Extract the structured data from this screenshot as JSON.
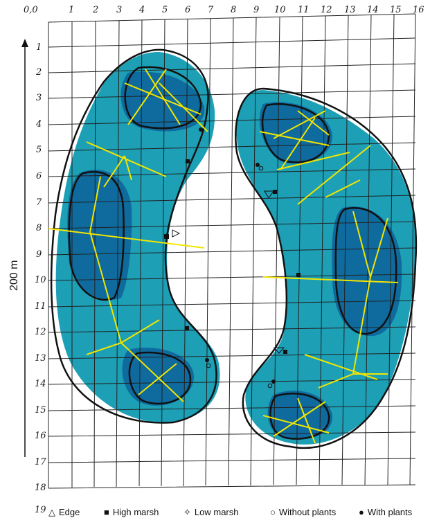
{
  "axes": {
    "x_ticks": [
      "0,0",
      "1",
      "2",
      "3",
      "4",
      "5",
      "6",
      "7",
      "8",
      "9",
      "10",
      "11",
      "12",
      "13",
      "14",
      "15",
      "16"
    ],
    "y_ticks": [
      "1",
      "2",
      "3",
      "4",
      "5",
      "6",
      "7",
      "8",
      "9",
      "10",
      "11",
      "12",
      "13",
      "14",
      "15",
      "16",
      "17",
      "18",
      "19"
    ],
    "side_label": "200 m"
  },
  "legend": [
    {
      "symbol": "△",
      "label": "Edge"
    },
    {
      "symbol": "■",
      "label": "High marsh"
    },
    {
      "symbol": "✧",
      "label": "Low marsh"
    },
    {
      "symbol": "○",
      "label": "Without plants"
    },
    {
      "symbol": "●",
      "label": "With plants"
    }
  ],
  "colors": {
    "water_light": "#1d9fb5",
    "water_dark": "#0f6a9e",
    "contour": "#111111",
    "transect": "#f2e600",
    "grid": "#222222"
  }
}
